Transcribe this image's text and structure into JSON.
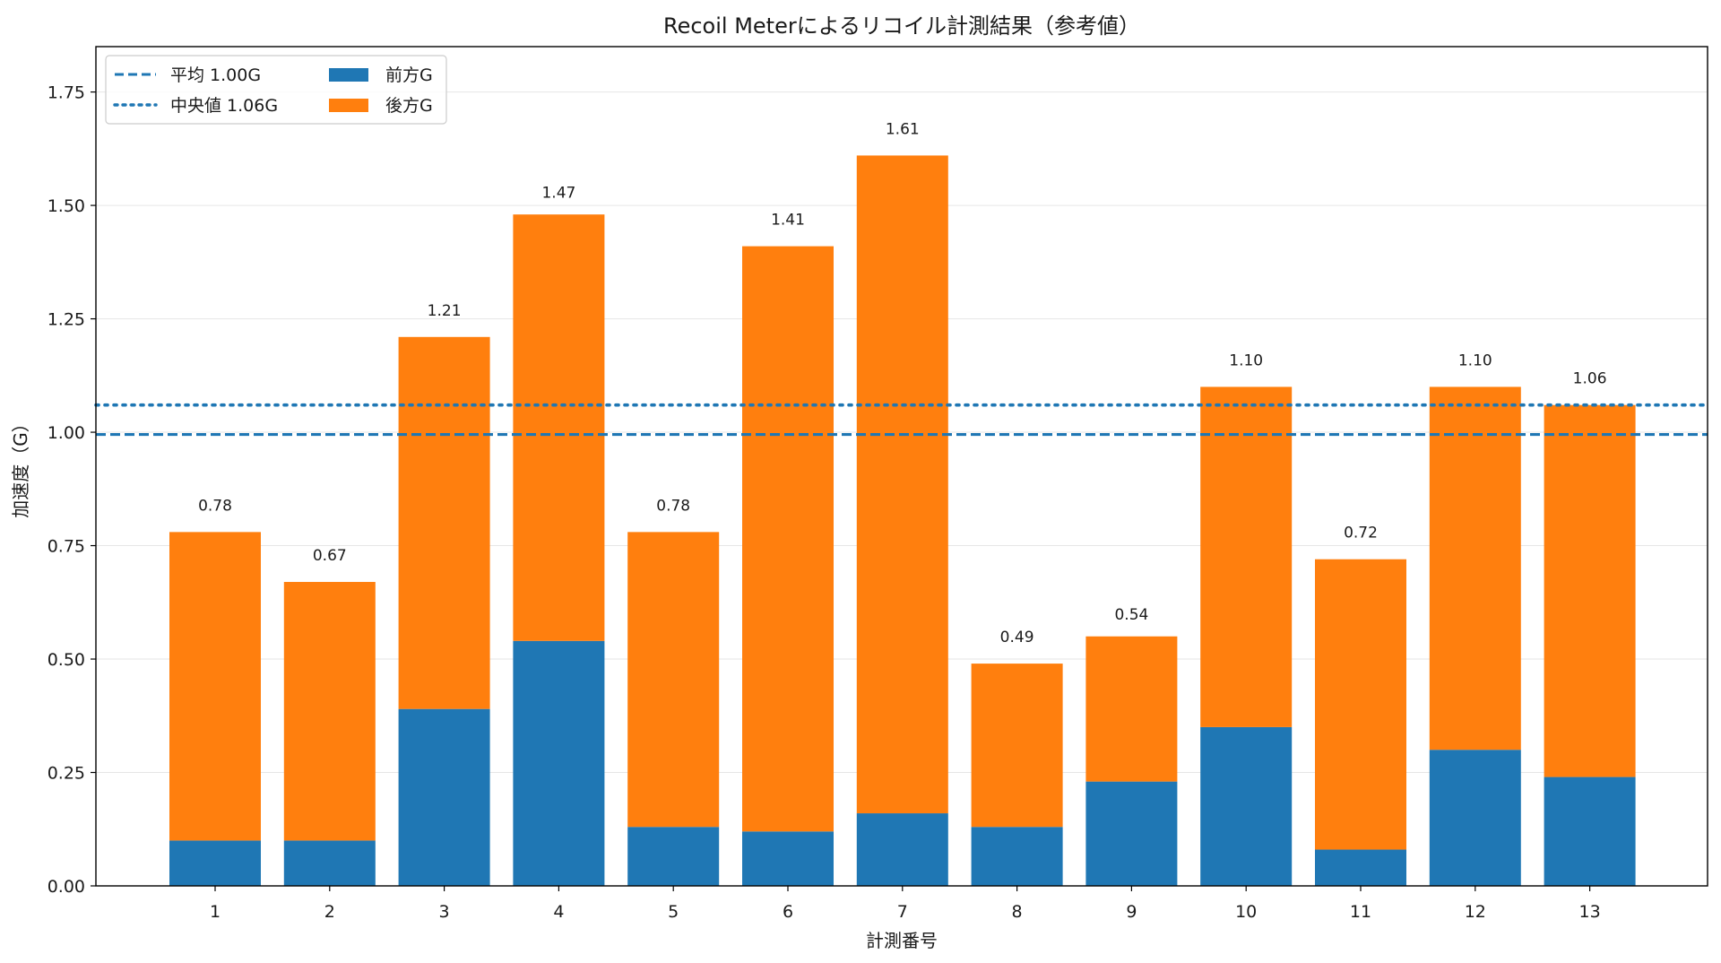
{
  "chart_data": {
    "type": "bar",
    "stacked": true,
    "title": "Recoil Meterによるリコイル計測結果（参考値）",
    "xlabel": "計測番号",
    "ylabel": "加速度（G）",
    "categories": [
      "1",
      "2",
      "3",
      "4",
      "5",
      "6",
      "7",
      "8",
      "9",
      "10",
      "11",
      "12",
      "13"
    ],
    "series": [
      {
        "name": "前方G",
        "color": "#1f77b4",
        "values": [
          0.1,
          0.1,
          0.39,
          0.54,
          0.13,
          0.12,
          0.16,
          0.13,
          0.23,
          0.35,
          0.08,
          0.3,
          0.24
        ]
      },
      {
        "name": "後方G",
        "color": "#ff7f0e",
        "values": [
          0.68,
          0.57,
          0.82,
          0.94,
          0.65,
          1.29,
          1.45,
          0.36,
          0.32,
          0.75,
          0.64,
          0.8,
          0.82
        ]
      }
    ],
    "totals": [
      0.78,
      0.67,
      1.21,
      1.47,
      0.78,
      1.41,
      1.61,
      0.49,
      0.54,
      1.1,
      0.72,
      1.1,
      1.06
    ],
    "total_labels": [
      "0.78",
      "0.67",
      "1.21",
      "1.47",
      "0.78",
      "1.41",
      "1.61",
      "0.49",
      "0.54",
      "1.10",
      "0.72",
      "1.10",
      "1.06"
    ],
    "reference_lines": [
      {
        "label": "平均 1.00G",
        "value": 0.995,
        "style": "dashed",
        "color": "#1f77b4"
      },
      {
        "label": "中央値 1.06G",
        "value": 1.06,
        "style": "dotted",
        "color": "#1f77b4"
      }
    ],
    "yticks": [
      "0.00",
      "0.25",
      "0.50",
      "0.75",
      "1.00",
      "1.25",
      "1.50",
      "1.75"
    ],
    "ylim": [
      0,
      1.85
    ],
    "grid": "y",
    "legend_position": "upper-left"
  }
}
